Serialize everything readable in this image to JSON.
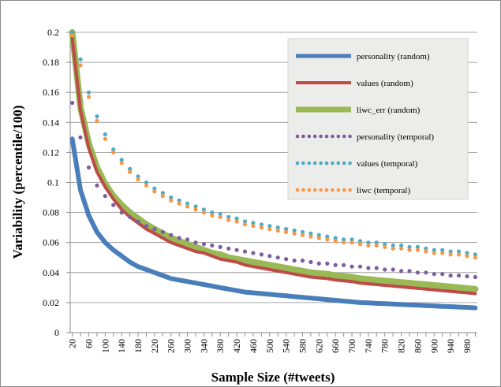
{
  "chart_data": {
    "type": "line",
    "title": "",
    "xlabel": "Sample Size (#tweets)",
    "ylabel": "Variability (percentile/100)",
    "ylim": [
      0,
      0.2
    ],
    "y_ticks": [
      "0",
      "0.02",
      "0.04",
      "0.06",
      "0.08",
      "0.1",
      "0.12",
      "0.14",
      "0.16",
      "0.18",
      "0.2"
    ],
    "x_ticks": [
      "20",
      "60",
      "100",
      "140",
      "180",
      "220",
      "260",
      "300",
      "340",
      "380",
      "420",
      "460",
      "500",
      "540",
      "580",
      "620",
      "660",
      "700",
      "740",
      "780",
      "820",
      "860",
      "900",
      "940",
      "980"
    ],
    "grid": "horizontal",
    "legend_position": "top-right",
    "x": [
      20,
      40,
      60,
      80,
      100,
      120,
      140,
      160,
      180,
      200,
      220,
      240,
      260,
      280,
      300,
      320,
      340,
      360,
      380,
      400,
      420,
      440,
      460,
      480,
      500,
      520,
      540,
      560,
      580,
      600,
      620,
      640,
      660,
      680,
      700,
      720,
      740,
      760,
      780,
      800,
      820,
      840,
      860,
      880,
      900,
      920,
      940,
      960,
      980,
      1000
    ],
    "series": [
      {
        "name": "personality (random)",
        "style": "solid",
        "color": "#4a7ebb",
        "values": [
          0.129,
          0.095,
          0.078,
          0.067,
          0.06,
          0.055,
          0.051,
          0.047,
          0.044,
          0.042,
          0.04,
          0.038,
          0.036,
          0.035,
          0.034,
          0.033,
          0.032,
          0.031,
          0.03,
          0.029,
          0.028,
          0.027,
          0.0265,
          0.026,
          0.0255,
          0.025,
          0.0245,
          0.024,
          0.0235,
          0.023,
          0.0225,
          0.022,
          0.0215,
          0.021,
          0.0205,
          0.02,
          0.0198,
          0.0195,
          0.0193,
          0.019,
          0.0188,
          0.0185,
          0.0183,
          0.018,
          0.0178,
          0.0175,
          0.0173,
          0.017,
          0.0168,
          0.0165
        ]
      },
      {
        "name": "values (random)",
        "style": "solid",
        "color": "#be4b48",
        "values": [
          0.196,
          0.148,
          0.123,
          0.107,
          0.097,
          0.089,
          0.082,
          0.077,
          0.073,
          0.069,
          0.066,
          0.063,
          0.06,
          0.058,
          0.056,
          0.054,
          0.053,
          0.051,
          0.049,
          0.048,
          0.047,
          0.045,
          0.044,
          0.043,
          0.042,
          0.041,
          0.04,
          0.039,
          0.038,
          0.037,
          0.0365,
          0.036,
          0.035,
          0.0345,
          0.034,
          0.033,
          0.0325,
          0.032,
          0.0315,
          0.031,
          0.0305,
          0.03,
          0.0295,
          0.029,
          0.0285,
          0.028,
          0.0275,
          0.027,
          0.0265,
          0.026
        ]
      },
      {
        "name": "liwc_err (random)",
        "style": "solid",
        "color": "#98b954",
        "values": [
          0.2,
          0.15,
          0.126,
          0.11,
          0.099,
          0.091,
          0.085,
          0.08,
          0.076,
          0.072,
          0.069,
          0.066,
          0.063,
          0.061,
          0.059,
          0.057,
          0.055,
          0.053,
          0.052,
          0.05,
          0.049,
          0.048,
          0.047,
          0.046,
          0.045,
          0.044,
          0.043,
          0.042,
          0.041,
          0.04,
          0.0395,
          0.039,
          0.038,
          0.0375,
          0.037,
          0.036,
          0.0355,
          0.035,
          0.0345,
          0.034,
          0.0335,
          0.033,
          0.0325,
          0.032,
          0.0315,
          0.031,
          0.0305,
          0.03,
          0.0295,
          0.029
        ]
      },
      {
        "name": "personality (temporal)",
        "style": "dotted",
        "color": "#7d5fa0",
        "values": [
          0.153,
          0.13,
          0.11,
          0.098,
          0.091,
          0.085,
          0.08,
          0.077,
          0.074,
          0.071,
          0.069,
          0.067,
          0.065,
          0.063,
          0.062,
          0.06,
          0.059,
          0.058,
          0.057,
          0.056,
          0.055,
          0.054,
          0.053,
          0.052,
          0.051,
          0.05,
          0.049,
          0.048,
          0.048,
          0.047,
          0.046,
          0.046,
          0.045,
          0.045,
          0.044,
          0.044,
          0.043,
          0.043,
          0.042,
          0.042,
          0.041,
          0.041,
          0.04,
          0.04,
          0.039,
          0.039,
          0.038,
          0.038,
          0.0375,
          0.037
        ]
      },
      {
        "name": "values (temporal)",
        "style": "dotted",
        "color": "#4bacc6",
        "values": [
          0.2,
          0.182,
          0.16,
          0.144,
          0.132,
          0.122,
          0.115,
          0.109,
          0.104,
          0.1,
          0.096,
          0.093,
          0.09,
          0.088,
          0.086,
          0.084,
          0.082,
          0.08,
          0.079,
          0.077,
          0.076,
          0.074,
          0.073,
          0.072,
          0.071,
          0.07,
          0.069,
          0.068,
          0.067,
          0.066,
          0.065,
          0.064,
          0.063,
          0.062,
          0.062,
          0.061,
          0.06,
          0.06,
          0.059,
          0.058,
          0.058,
          0.057,
          0.057,
          0.056,
          0.055,
          0.055,
          0.054,
          0.054,
          0.053,
          0.052
        ]
      },
      {
        "name": "liwc (temporal)",
        "style": "dotted",
        "color": "#f79646",
        "values": [
          0.198,
          0.178,
          0.157,
          0.141,
          0.129,
          0.12,
          0.113,
          0.107,
          0.102,
          0.098,
          0.094,
          0.091,
          0.088,
          0.086,
          0.084,
          0.082,
          0.08,
          0.078,
          0.077,
          0.075,
          0.074,
          0.072,
          0.071,
          0.07,
          0.069,
          0.068,
          0.067,
          0.066,
          0.065,
          0.064,
          0.063,
          0.062,
          0.061,
          0.06,
          0.06,
          0.059,
          0.058,
          0.058,
          0.057,
          0.056,
          0.056,
          0.055,
          0.055,
          0.054,
          0.053,
          0.053,
          0.052,
          0.052,
          0.051,
          0.05
        ]
      }
    ]
  }
}
